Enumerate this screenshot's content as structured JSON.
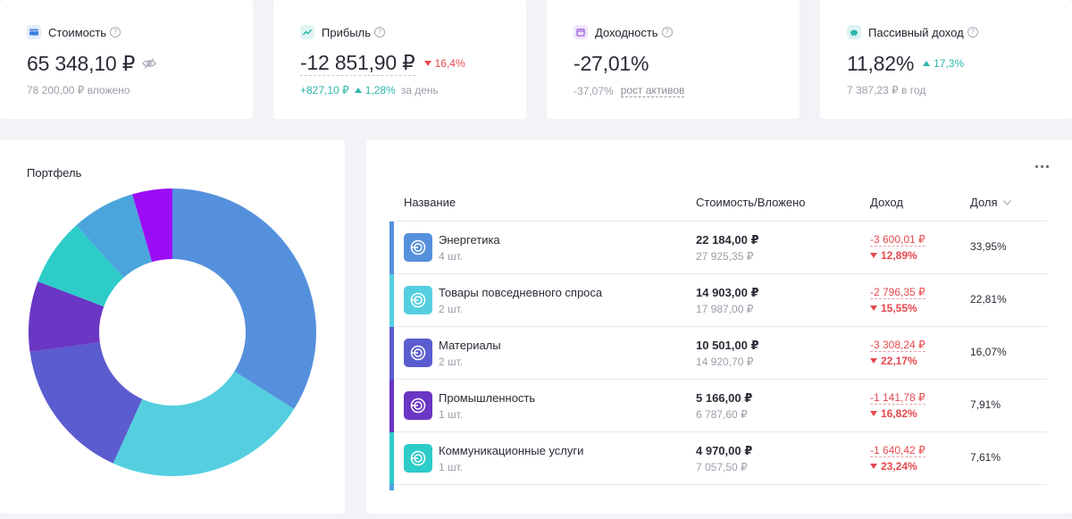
{
  "stats": [
    {
      "title": "Стоимость",
      "icon": "wallet-icon",
      "icon_bg": "#e3edfb",
      "icon_color": "#3f7de0",
      "value": "65 348,10 ₽",
      "sub": "78 200,00 ₽ вложено"
    },
    {
      "title": "Прибыль",
      "icon": "chart-line-icon",
      "icon_bg": "#dff4f2",
      "icon_color": "#2bb6a8",
      "value": "-12 851,90 ₽",
      "delta": "16,4%",
      "sub_value": "+827,10 ₽",
      "sub_pct": "1,28%",
      "sub_suffix": "за день"
    },
    {
      "title": "Доходность",
      "icon": "calendar-icon",
      "icon_bg": "#efe5fb",
      "icon_color": "#9c5fe0",
      "value": "-27,01%",
      "sub_value": "-37,07%",
      "sub_link": "рост активов"
    },
    {
      "title": "Пассивный доход",
      "icon": "piggy-bank-icon",
      "icon_bg": "#dff4f2",
      "icon_color": "#2bb6a8",
      "value": "11,82%",
      "delta": "17,3%",
      "sub": "7 387,23 ₽ в год"
    }
  ],
  "portfolio": {
    "title": "Портфель",
    "segments": [
      {
        "name": "Энергетика",
        "share": 33.95,
        "color": "#5590dc"
      },
      {
        "name": "Товары повседневного спроса",
        "share": 22.81,
        "color": "#55cfe0"
      },
      {
        "name": "Материалы",
        "share": 16.07,
        "color": "#5b5ccf"
      },
      {
        "name": "Промышленность",
        "share": 7.91,
        "color": "#6a36c4"
      },
      {
        "name": "Коммуникационные услуги",
        "share": 7.61,
        "color": "#2dccc9"
      },
      {
        "name": "",
        "share": 7.15,
        "color": "#4ba5dc"
      },
      {
        "name": "",
        "share": 4.5,
        "color": "#9b0cf5"
      }
    ]
  },
  "table": {
    "headers": {
      "name": "Название",
      "value": "Стоимость/Вложено",
      "income": "Доход",
      "share": "Доля"
    },
    "rows": [
      {
        "name": "Энергетика",
        "qty": "4 шт.",
        "value": "22 184,00 ₽",
        "invested": "27 925,35 ₽",
        "income": "-3 600,01 ₽",
        "income_pct": "12,89%",
        "share": "33,95%",
        "color": "#5590dc"
      },
      {
        "name": "Товары повседневного спроса",
        "qty": "2 шт.",
        "value": "14 903,00 ₽",
        "invested": "17 987,00 ₽",
        "income": "-2 796,35 ₽",
        "income_pct": "15,55%",
        "share": "22,81%",
        "color": "#55cfe0"
      },
      {
        "name": "Материалы",
        "qty": "2 шт.",
        "value": "10 501,00 ₽",
        "invested": "14 920,70 ₽",
        "income": "-3 308,24 ₽",
        "income_pct": "22,17%",
        "share": "16,07%",
        "color": "#5b5ccf"
      },
      {
        "name": "Промышленность",
        "qty": "1 шт.",
        "value": "5 166,00 ₽",
        "invested": "6 787,60 ₽",
        "income": "-1 141,78 ₽",
        "income_pct": "16,82%",
        "share": "7,91%",
        "color": "#6a36c4"
      },
      {
        "name": "Коммуникационные услуги",
        "qty": "1 шт.",
        "value": "4 970,00 ₽",
        "invested": "7 057,50 ₽",
        "income": "-1 640,42 ₽",
        "income_pct": "23,24%",
        "share": "7,61%",
        "color": "#2dccc9"
      }
    ],
    "next_row_color": "#4ba5dc"
  }
}
